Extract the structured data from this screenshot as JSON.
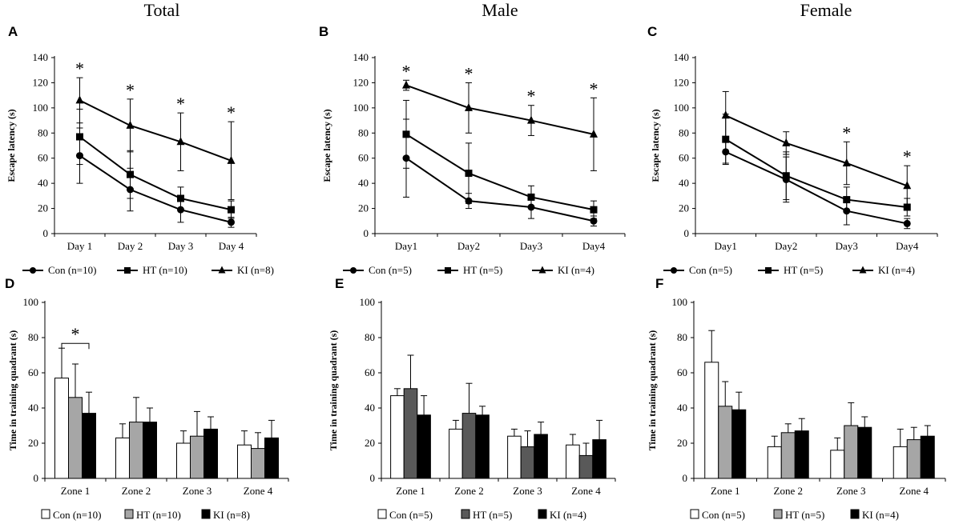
{
  "figure": {
    "column_titles": [
      "Total",
      "Male",
      "Female"
    ]
  },
  "chart_data": [
    {
      "panel": "A",
      "type": "line",
      "column": "Total",
      "ylabel": "Escape latency (s)",
      "ylim": [
        0,
        140
      ],
      "yticks": [
        0,
        20,
        40,
        60,
        80,
        100,
        120,
        140
      ],
      "categories": [
        "Day 1",
        "Day 2",
        "Day 3",
        "Day 4"
      ],
      "series": [
        {
          "name": "Con (n=10)",
          "marker": "circle",
          "values": [
            62,
            35,
            19,
            9
          ],
          "err": [
            22,
            17,
            10,
            4
          ]
        },
        {
          "name": "HT (n=10)",
          "marker": "square",
          "values": [
            77,
            47,
            28,
            19
          ],
          "err": [
            22,
            19,
            9,
            7
          ]
        },
        {
          "name": "KI (n=8)",
          "marker": "triangle",
          "values": [
            106,
            86,
            73,
            58
          ],
          "err": [
            18,
            21,
            23,
            31
          ]
        }
      ],
      "significance": [
        "*",
        "*",
        "*",
        "*"
      ]
    },
    {
      "panel": "B",
      "type": "line",
      "column": "Male",
      "ylabel": "Escape latency (s)",
      "ylim": [
        0,
        140
      ],
      "yticks": [
        0,
        20,
        40,
        60,
        80,
        100,
        120,
        140
      ],
      "categories": [
        "Day1",
        "Day2",
        "Day3",
        "Day4"
      ],
      "series": [
        {
          "name": "Con (n=5)",
          "marker": "circle",
          "values": [
            60,
            26,
            21,
            10
          ],
          "err": [
            31,
            6,
            9,
            4
          ]
        },
        {
          "name": "HT (n=5)",
          "marker": "square",
          "values": [
            79,
            48,
            29,
            19
          ],
          "err": [
            27,
            24,
            9,
            7
          ]
        },
        {
          "name": "KI (n=4)",
          "marker": "triangle",
          "values": [
            118,
            100,
            90,
            79
          ],
          "err": [
            4,
            20,
            12,
            29
          ]
        }
      ],
      "significance": [
        "*",
        "*",
        "*",
        "*"
      ]
    },
    {
      "panel": "C",
      "type": "line",
      "column": "Female",
      "ylabel": "Escape latency (s)",
      "ylim": [
        0,
        140
      ],
      "yticks": [
        0,
        20,
        40,
        60,
        80,
        100,
        120,
        140
      ],
      "categories": [
        "Day1",
        "Day2",
        "Day3",
        "Day4"
      ],
      "series": [
        {
          "name": "Con (n=5)",
          "marker": "circle",
          "values": [
            65,
            43,
            18,
            8
          ],
          "err": [
            9,
            18,
            11,
            4
          ]
        },
        {
          "name": "HT (n=5)",
          "marker": "square",
          "values": [
            75,
            46,
            27,
            21
          ],
          "err": [
            20,
            19,
            10,
            7
          ]
        },
        {
          "name": "KI (n=4)",
          "marker": "triangle",
          "values": [
            94,
            72,
            56,
            38
          ],
          "err": [
            19,
            9,
            17,
            16
          ]
        }
      ],
      "significance": [
        "",
        "",
        "*",
        "*"
      ]
    },
    {
      "panel": "D",
      "type": "bar",
      "column": "Total",
      "ylabel": "Time in training quadrant (s)",
      "ylim": [
        0,
        100
      ],
      "yticks": [
        0,
        20,
        40,
        60,
        80,
        100
      ],
      "categories": [
        "Zone 1",
        "Zone 2",
        "Zone 3",
        "Zone 4"
      ],
      "series": [
        {
          "name": "Con (n=10)",
          "fill": "#ffffff",
          "values": [
            57,
            23,
            20,
            19
          ],
          "err": [
            17,
            8,
            7,
            8
          ]
        },
        {
          "name": "HT (n=10)",
          "fill": "#a6a6a6",
          "values": [
            46,
            32,
            24,
            17
          ],
          "err": [
            19,
            14,
            14,
            9
          ]
        },
        {
          "name": "KI (n=8)",
          "fill": "#000000",
          "values": [
            37,
            32,
            28,
            23
          ],
          "err": [
            12,
            8,
            7,
            10
          ]
        }
      ],
      "significance_bracket": {
        "zone": "Zone 1",
        "from": "Con (n=10)",
        "to": "KI (n=8)",
        "label": "*"
      }
    },
    {
      "panel": "E",
      "type": "bar",
      "column": "Male",
      "ylabel": "Time in training quadrant (s)",
      "ylim": [
        0,
        100
      ],
      "yticks": [
        0,
        20,
        40,
        60,
        80,
        100
      ],
      "categories": [
        "Zone 1",
        "Zone 2",
        "Zone 3",
        "Zone 4"
      ],
      "series": [
        {
          "name": "Con (n=5)",
          "fill": "#ffffff",
          "values": [
            47,
            28,
            24,
            19
          ],
          "err": [
            4,
            5,
            4,
            6
          ]
        },
        {
          "name": "HT (n=5)",
          "fill": "#595959",
          "values": [
            51,
            37,
            18,
            13
          ],
          "err": [
            19,
            17,
            9,
            7
          ]
        },
        {
          "name": "KI (n=4)",
          "fill": "#000000",
          "values": [
            36,
            36,
            25,
            22
          ],
          "err": [
            11,
            5,
            7,
            11
          ]
        }
      ]
    },
    {
      "panel": "F",
      "type": "bar",
      "column": "Female",
      "ylabel": "Time in training quadrant (s)",
      "ylim": [
        0,
        100
      ],
      "yticks": [
        0,
        20,
        40,
        60,
        80,
        100
      ],
      "categories": [
        "Zone 1",
        "Zone 2",
        "Zone 3",
        "Zone 4"
      ],
      "series": [
        {
          "name": "Con (n=5)",
          "fill": "#ffffff",
          "values": [
            66,
            18,
            16,
            18
          ],
          "err": [
            18,
            6,
            7,
            10
          ]
        },
        {
          "name": "HT (n=5)",
          "fill": "#a6a6a6",
          "values": [
            41,
            26,
            30,
            22
          ],
          "err": [
            14,
            5,
            13,
            7
          ]
        },
        {
          "name": "KI (n=4)",
          "fill": "#000000",
          "values": [
            39,
            27,
            29,
            24
          ],
          "err": [
            10,
            7,
            6,
            6
          ]
        }
      ]
    }
  ]
}
